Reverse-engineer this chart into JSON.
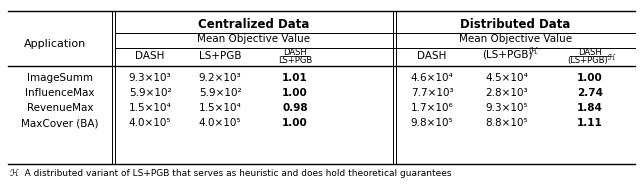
{
  "title": "",
  "background_color": "#ffffff",
  "footnote": "ℋ  A distributed variant of LS+PGB that serves as heuristic and does hold theoretical guarantees",
  "header1": [
    "Centralized Data",
    "Distributed Data"
  ],
  "header2": [
    "Mean Objective Value",
    "Mean Objective Value"
  ],
  "col_headers": [
    "DASH",
    "LS+PGB",
    "DASH\nLS+PGB",
    "DASH",
    "(LS+PGB)ⁿ",
    "DASH\n(LS+PGB)ⁿ"
  ],
  "col_label": "Application",
  "rows": [
    [
      "ImageSumm",
      "9.3×10³",
      "9.2×10³",
      "1.01",
      "4.6×10⁴",
      "4.5×10⁴",
      "1.00"
    ],
    [
      "InfluenceMax",
      "5.9×10²",
      "5.9×10²",
      "1.00",
      "7.7×10³",
      "2.8×10³",
      "2.74"
    ],
    [
      "RevenueMax",
      "1.5×10⁴",
      "1.5×10⁴",
      "0.98",
      "1.7×10⁶",
      "9.3×10⁵",
      "1.84"
    ],
    [
      "MaxCover (BA)",
      "4.0×10⁵",
      "4.0×10⁵",
      "1.00",
      "9.8×10⁵",
      "8.8×10⁵",
      "1.11"
    ]
  ]
}
